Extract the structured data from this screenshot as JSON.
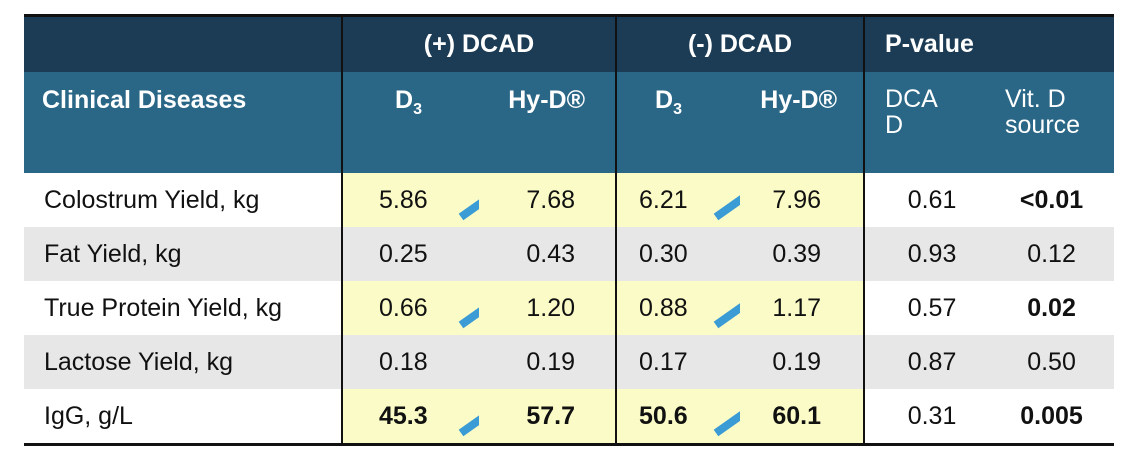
{
  "header": {
    "groups": {
      "plus_dcad": "(+) DCAD",
      "minus_dcad": "(-) DCAD",
      "pvalue": "P-value"
    },
    "diseases_label": "Clinical Diseases",
    "d3_main": "D",
    "d3_sub": "3",
    "hyd": "Hy-D®",
    "pv_dcad": "DCA D",
    "pv_dcad_line1": "DCA",
    "pv_dcad_line2": "D",
    "pv_vitd_line1": "Vit. D",
    "pv_vitd_line2": "source"
  },
  "colors": {
    "header_dark": "#1c3c55",
    "header_mid": "#2a6787",
    "highlight_yellow": "#fbfbc7",
    "row_grey": "#e7e7e7",
    "arrow_blue": "#3a9bd5"
  },
  "rows": [
    {
      "label": "Colostrum Yield, kg",
      "plus_d3": "5.86",
      "plus_hyd": "7.68",
      "minus_d3": "6.21",
      "minus_hyd": "7.96",
      "p_dcad": "0.61",
      "p_vitd": "<0.01",
      "highlight": true,
      "bold_values": false,
      "bold_vitd": true,
      "arrows": true,
      "arrow_icon": "up-right-arrow-icon"
    },
    {
      "label": "Fat Yield, kg",
      "plus_d3": "0.25",
      "plus_hyd": "0.43",
      "minus_d3": "0.30",
      "minus_hyd": "0.39",
      "p_dcad": "0.93",
      "p_vitd": "0.12",
      "highlight": false,
      "bold_values": false,
      "bold_vitd": false,
      "arrows": false
    },
    {
      "label": "True Protein Yield, kg",
      "plus_d3": "0.66",
      "plus_hyd": "1.20",
      "minus_d3": "0.88",
      "minus_hyd": "1.17",
      "p_dcad": "0.57",
      "p_vitd": "0.02",
      "highlight": true,
      "bold_values": false,
      "bold_vitd": true,
      "arrows": true,
      "arrow_icon": "up-right-arrow-icon"
    },
    {
      "label": "Lactose Yield, kg",
      "plus_d3": "0.18",
      "plus_hyd": "0.19",
      "minus_d3": "0.17",
      "minus_hyd": "0.19",
      "p_dcad": "0.87",
      "p_vitd": "0.50",
      "highlight": false,
      "bold_values": false,
      "bold_vitd": false,
      "arrows": false
    },
    {
      "label": "IgG, g/L",
      "plus_d3": "45.3",
      "plus_hyd": "57.7",
      "minus_d3": "50.6",
      "minus_hyd": "60.1",
      "p_dcad": "0.31",
      "p_vitd": "0.005",
      "highlight": true,
      "bold_values": true,
      "bold_vitd": true,
      "arrows": true,
      "arrow_icon": "up-right-arrow-icon"
    }
  ]
}
